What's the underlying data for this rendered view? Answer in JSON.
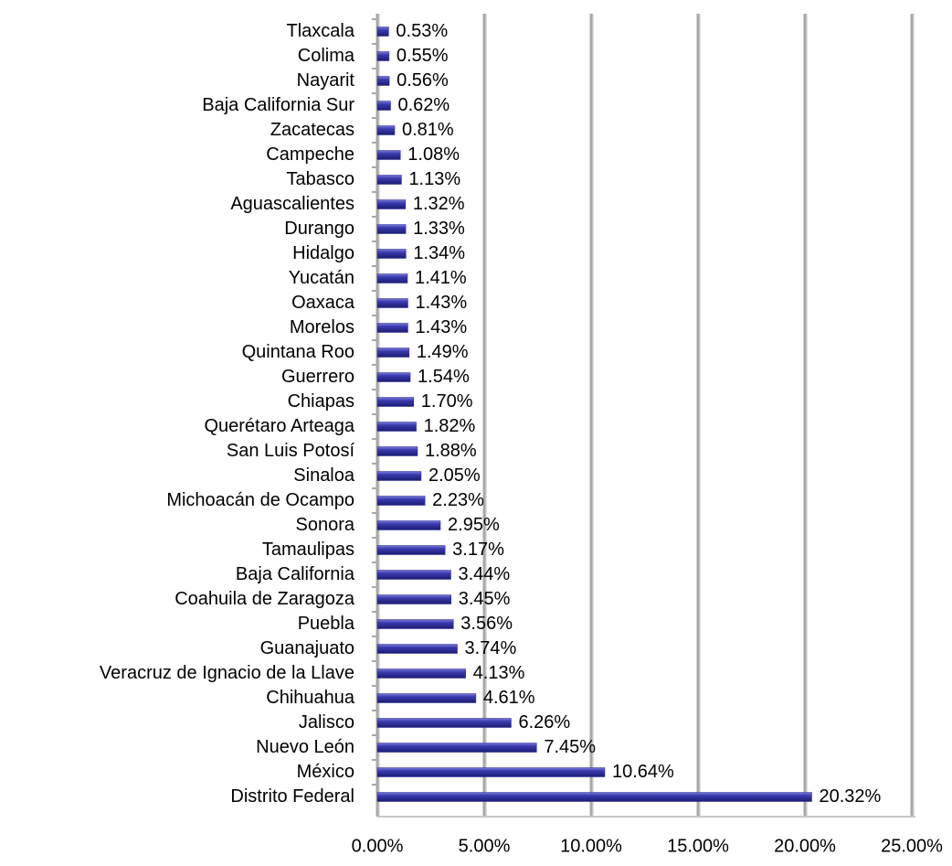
{
  "chart_data": {
    "type": "barh",
    "categories": [
      "Tlaxcala",
      "Colima",
      "Nayarit",
      "Baja California Sur",
      "Zacatecas",
      "Campeche",
      "Tabasco",
      "Aguascalientes",
      "Durango",
      "Hidalgo",
      "Yucatán",
      "Oaxaca",
      "Morelos",
      "Quintana Roo",
      "Guerrero",
      "Chiapas",
      "Querétaro Arteaga",
      "San Luis Potosí",
      "Sinaloa",
      "Michoacán de Ocampo",
      "Sonora",
      "Tamaulipas",
      "Baja California",
      "Coahuila de Zaragoza",
      "Puebla",
      "Guanajuato",
      "Veracruz de Ignacio de la Llave",
      "Chihuahua",
      "Jalisco",
      "Nuevo León",
      "México",
      "Distrito Federal"
    ],
    "values": [
      0.53,
      0.55,
      0.56,
      0.62,
      0.81,
      1.08,
      1.13,
      1.32,
      1.33,
      1.34,
      1.41,
      1.43,
      1.43,
      1.49,
      1.54,
      1.7,
      1.82,
      1.88,
      2.05,
      2.23,
      2.95,
      3.17,
      3.44,
      3.45,
      3.56,
      3.74,
      4.13,
      4.61,
      6.26,
      7.45,
      10.64,
      20.32
    ],
    "value_labels": [
      "0.53%",
      "0.55%",
      "0.56%",
      "0.62%",
      "0.81%",
      "1.08%",
      "1.13%",
      "1.32%",
      "1.33%",
      "1.34%",
      "1.41%",
      "1.43%",
      "1.43%",
      "1.49%",
      "1.54%",
      "1.70%",
      "1.82%",
      "1.88%",
      "2.05%",
      "2.23%",
      "2.95%",
      "3.17%",
      "3.44%",
      "3.45%",
      "3.56%",
      "3.74%",
      "4.13%",
      "4.61%",
      "6.26%",
      "7.45%",
      "10.64%",
      "20.32%"
    ],
    "color": "#2b2b9a",
    "xlim": [
      0,
      25
    ],
    "xticks": [
      {
        "value": 0,
        "label": "0.00%"
      },
      {
        "value": 5,
        "label": "5.00%"
      },
      {
        "value": 10,
        "label": "10.00%"
      },
      {
        "value": 15,
        "label": "15.00%"
      },
      {
        "value": 20,
        "label": "20.00%"
      },
      {
        "value": 25,
        "label": "25.00%"
      }
    ],
    "grid": true
  }
}
